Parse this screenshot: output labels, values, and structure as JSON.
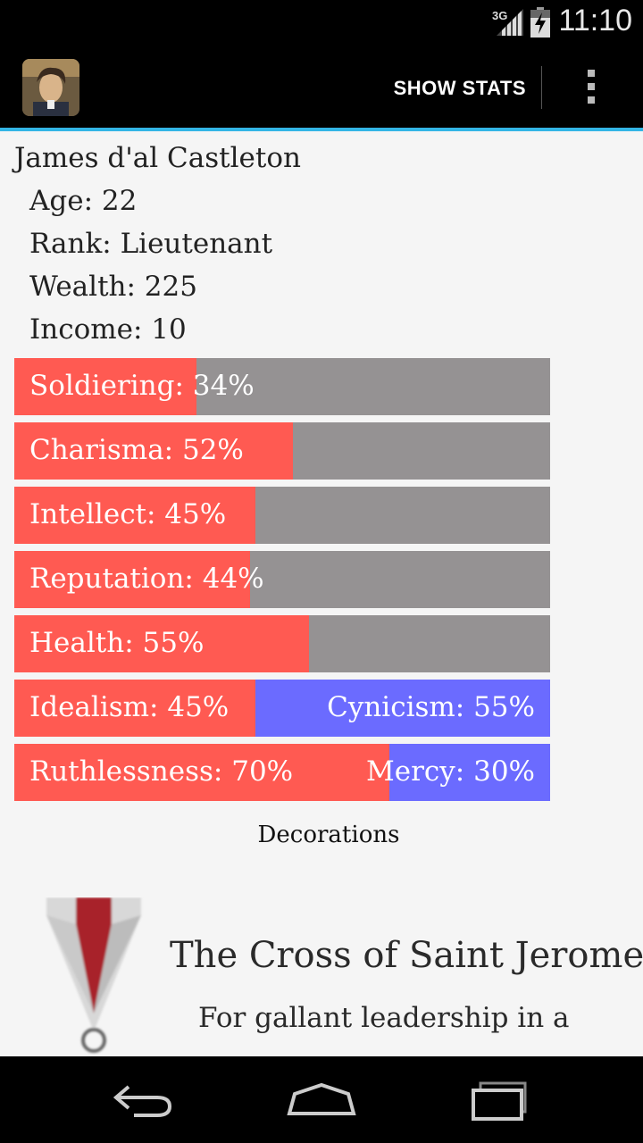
{
  "status": {
    "network": "3G",
    "time": "11:10"
  },
  "action_bar": {
    "show_stats_label": "SHOW STATS",
    "app_icon": "character-portrait-icon",
    "overflow_icon": "overflow-menu-icon"
  },
  "character": {
    "name": "James d'al Castleton",
    "age": "Age: 22",
    "rank": "Rank: Lieutenant",
    "wealth": "Wealth: 225",
    "income": "Income: 10"
  },
  "stats": [
    {
      "label": "Soldiering: 34%",
      "value": 0.34
    },
    {
      "label": "Charisma: 52%",
      "value": 0.52
    },
    {
      "label": "Intellect: 45%",
      "value": 0.45
    },
    {
      "label": "Reputation: 44%",
      "value": 0.44
    },
    {
      "label": "Health: 55%",
      "value": 0.55
    }
  ],
  "opposed_stats": [
    {
      "left_label": "Idealism: 45%",
      "right_label": "Cynicism: 55%",
      "value": 0.45
    },
    {
      "left_label": "Ruthlessness: 70%",
      "right_label": "Mercy: 30%",
      "value": 0.7
    }
  ],
  "decorations": {
    "heading": "Decorations",
    "medal_title": "The Cross of Saint Jerome",
    "medal_subtitle": "For gallant leadership in a"
  },
  "colors": {
    "stat_fill": "#ff5a52",
    "stat_track": "#959293",
    "opposed_right": "#6b6bff",
    "accent": "#33b5e5"
  },
  "nav": {
    "back_icon": "back-icon",
    "home_icon": "home-icon",
    "recents_icon": "recent-apps-icon"
  }
}
